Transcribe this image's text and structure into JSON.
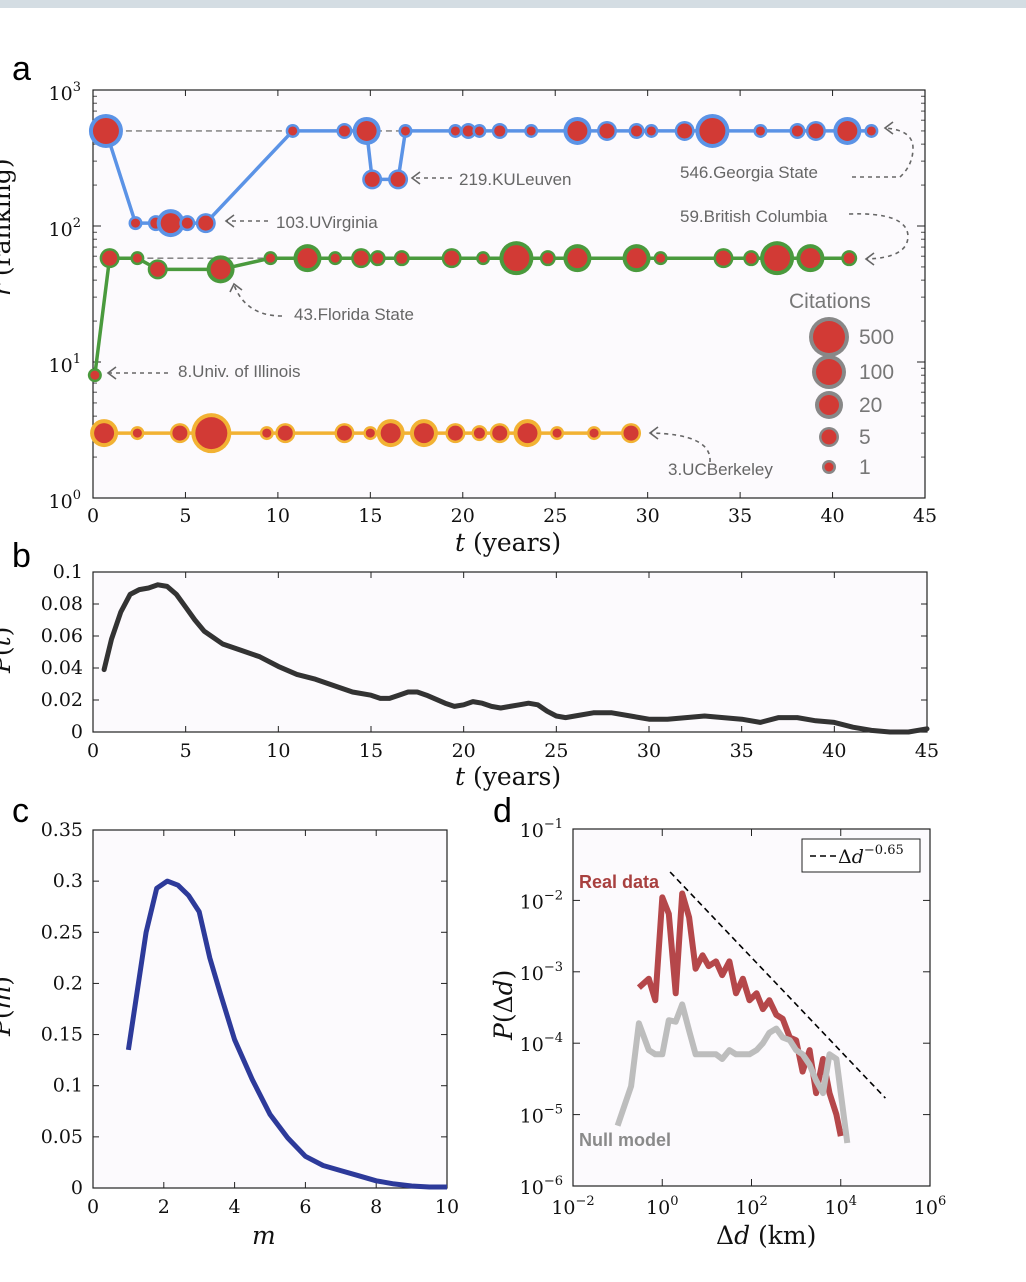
{
  "panels": {
    "a": "a",
    "b": "b",
    "c": "c",
    "d": "d"
  },
  "chart_data": [
    {
      "panel": "a",
      "type": "scatter",
      "xlabel": "t (years)",
      "ylabel": "r (ranking)",
      "xlim": [
        0,
        45
      ],
      "ylim": [
        1,
        1000
      ],
      "yscale": "log",
      "xticks": [
        "0",
        "5",
        "10",
        "15",
        "20",
        "25",
        "30",
        "35",
        "40",
        "45"
      ],
      "yticks": [
        "10^0",
        "10^1",
        "10^2",
        "10^3"
      ],
      "colors": {
        "blue": "#5b93e6",
        "green": "#4a9a3d",
        "orange": "#f2b233",
        "dot": "#d23a35",
        "legend_ring": "#888888",
        "annotation": "#666666"
      },
      "series": [
        {
          "color": "#5b93e6",
          "points": [
            [
              0.7,
              500,
              100
            ],
            [
              2.3,
              105,
              1
            ],
            [
              3.4,
              105,
              2
            ],
            [
              4.2,
              105,
              20
            ],
            [
              5.1,
              105,
              2
            ],
            [
              6.1,
              105,
              5
            ],
            [
              10.8,
              500,
              1
            ],
            [
              13.6,
              500,
              2
            ],
            [
              14.8,
              500,
              20
            ],
            [
              15.1,
              220,
              5
            ],
            [
              16.5,
              220,
              5
            ],
            [
              16.9,
              500,
              1
            ],
            [
              19.6,
              500,
              1
            ],
            [
              20.3,
              500,
              2
            ],
            [
              20.9,
              500,
              1
            ],
            [
              22.0,
              500,
              2
            ],
            [
              23.7,
              500,
              1
            ],
            [
              26.2,
              500,
              20
            ],
            [
              27.8,
              500,
              5
            ],
            [
              29.4,
              500,
              2
            ],
            [
              30.2,
              500,
              1
            ],
            [
              32.0,
              500,
              5
            ],
            [
              33.5,
              500,
              100
            ],
            [
              36.1,
              500,
              1
            ],
            [
              38.1,
              500,
              2
            ],
            [
              39.1,
              500,
              5
            ],
            [
              40.8,
              500,
              20
            ],
            [
              42.1,
              500,
              1
            ]
          ]
        },
        {
          "color": "#4a9a3d",
          "points": [
            [
              0.1,
              8,
              1
            ],
            [
              0.9,
              58,
              5
            ],
            [
              2.4,
              58,
              1
            ],
            [
              3.5,
              48,
              5
            ],
            [
              6.9,
              48,
              20
            ],
            [
              9.6,
              58,
              1
            ],
            [
              11.6,
              58,
              20
            ],
            [
              13.1,
              58,
              1
            ],
            [
              14.5,
              58,
              5
            ],
            [
              15.4,
              58,
              2
            ],
            [
              16.7,
              58,
              2
            ],
            [
              19.4,
              58,
              5
            ],
            [
              21.1,
              58,
              1
            ],
            [
              22.9,
              58,
              100
            ],
            [
              24.6,
              58,
              2
            ],
            [
              26.2,
              58,
              20
            ],
            [
              29.4,
              58,
              20
            ],
            [
              30.7,
              58,
              1
            ],
            [
              34.1,
              58,
              5
            ],
            [
              35.6,
              58,
              2
            ],
            [
              37.0,
              58,
              100
            ],
            [
              38.8,
              58,
              20
            ],
            [
              40.9,
              58,
              2
            ]
          ]
        },
        {
          "color": "#f2b233",
          "points": [
            [
              0.6,
              3,
              20
            ],
            [
              2.4,
              3,
              1
            ],
            [
              4.7,
              3,
              5
            ],
            [
              6.4,
              3,
              500
            ],
            [
              9.4,
              3,
              1
            ],
            [
              10.4,
              3,
              5
            ],
            [
              13.6,
              3,
              5
            ],
            [
              15.0,
              3,
              1
            ],
            [
              16.1,
              3,
              20
            ],
            [
              17.9,
              3,
              20
            ],
            [
              19.6,
              3,
              5
            ],
            [
              20.9,
              3,
              2
            ],
            [
              22.0,
              3,
              5
            ],
            [
              23.5,
              3,
              20
            ],
            [
              25.1,
              3,
              1
            ],
            [
              27.1,
              3,
              1
            ],
            [
              29.1,
              3,
              5
            ]
          ]
        }
      ],
      "annotations": [
        "546.Georgia State",
        "219.KULeuven",
        "103.UVirginia",
        "59.British Columbia",
        "43.Florida State",
        "8.Univ. of Illinois",
        "3.UCBerkeley"
      ],
      "legend": {
        "title": "Citations",
        "entries": [
          "500",
          "100",
          "20",
          "5",
          "1"
        ],
        "position": "right"
      }
    },
    {
      "panel": "b",
      "type": "line",
      "xlabel": "t (years)",
      "ylabel": "P(t)",
      "xlim": [
        0,
        45
      ],
      "ylim": [
        0,
        0.1
      ],
      "xticks": [
        "0",
        "5",
        "10",
        "15",
        "20",
        "25",
        "30",
        "35",
        "40",
        "45"
      ],
      "yticks": [
        "0",
        "0.02",
        "0.04",
        "0.06",
        "0.08",
        "0.1"
      ],
      "color": "#333333",
      "x": [
        0.6,
        1.0,
        1.5,
        2.0,
        2.5,
        3.0,
        3.5,
        4.0,
        4.5,
        5.0,
        5.5,
        6.0,
        7.0,
        8.0,
        9.0,
        10.0,
        11.0,
        12.0,
        13.0,
        14.0,
        15.0,
        15.5,
        16.0,
        16.5,
        17.0,
        17.5,
        18.0,
        19.0,
        19.5,
        20.0,
        20.5,
        21.0,
        21.5,
        22.0,
        22.5,
        23.0,
        23.5,
        24.0,
        24.5,
        25.0,
        25.5,
        26.0,
        27.0,
        28.0,
        29.0,
        30.0,
        31.0,
        32.0,
        33.0,
        34.0,
        35.0,
        36.0,
        37.0,
        38.0,
        39.0,
        40.0,
        41.0,
        42.0,
        43.0,
        44.0,
        45.0
      ],
      "y": [
        0.039,
        0.058,
        0.075,
        0.086,
        0.089,
        0.09,
        0.092,
        0.091,
        0.086,
        0.078,
        0.07,
        0.063,
        0.055,
        0.051,
        0.047,
        0.041,
        0.036,
        0.033,
        0.029,
        0.025,
        0.023,
        0.021,
        0.021,
        0.023,
        0.025,
        0.025,
        0.023,
        0.018,
        0.016,
        0.017,
        0.019,
        0.018,
        0.016,
        0.015,
        0.016,
        0.017,
        0.018,
        0.017,
        0.013,
        0.01,
        0.009,
        0.01,
        0.012,
        0.012,
        0.01,
        0.008,
        0.008,
        0.009,
        0.01,
        0.009,
        0.008,
        0.006,
        0.009,
        0.009,
        0.007,
        0.006,
        0.003,
        0.001,
        0.0,
        0.0,
        0.002
      ]
    },
    {
      "panel": "c",
      "type": "line",
      "xlabel": "m",
      "ylabel": "P(m)",
      "xlim": [
        0,
        10
      ],
      "ylim": [
        0,
        0.35
      ],
      "xticks": [
        "0",
        "2",
        "4",
        "6",
        "8",
        "10"
      ],
      "yticks": [
        "0",
        "0.05",
        "0.1",
        "0.15",
        "0.2",
        "0.25",
        "0.3",
        "0.35"
      ],
      "color": "#2d3a9a",
      "x": [
        1.0,
        1.5,
        1.8,
        2.1,
        2.4,
        2.7,
        3.0,
        3.3,
        3.6,
        4.0,
        4.5,
        5.0,
        5.5,
        6.0,
        6.5,
        7.0,
        7.5,
        8.0,
        8.5,
        9.0,
        9.5,
        10.0
      ],
      "y": [
        0.135,
        0.25,
        0.293,
        0.3,
        0.296,
        0.286,
        0.27,
        0.225,
        0.19,
        0.145,
        0.106,
        0.072,
        0.049,
        0.031,
        0.022,
        0.017,
        0.012,
        0.007,
        0.004,
        0.002,
        0.001,
        0.001
      ]
    },
    {
      "panel": "d",
      "type": "line",
      "xlabel": "Δd (km)",
      "ylabel": "P(Δd)",
      "xscale": "log",
      "yscale": "log",
      "xlim": [
        0.01,
        1000000
      ],
      "ylim": [
        1e-06,
        0.1
      ],
      "xticks": [
        "10^-2",
        "10^0",
        "10^2",
        "10^4",
        "10^6"
      ],
      "yticks": [
        "10^-6",
        "10^-5",
        "10^-4",
        "10^-3",
        "10^-2",
        "10^-1"
      ],
      "legend": {
        "entries": [
          "Δd^-0.65"
        ],
        "position": "top-right"
      },
      "series": [
        {
          "name": "Real data",
          "color": "#b5474a",
          "x": [
            0.3,
            0.5,
            0.7,
            1.0,
            1.4,
            2.0,
            2.8,
            4.0,
            5.6,
            8.0,
            11,
            16,
            22,
            32,
            45,
            64,
            90,
            130,
            180,
            250,
            360,
            500,
            720,
            1000,
            1400,
            2000,
            2800,
            4000,
            5600,
            8000,
            10000
          ],
          "y": [
            0.0006,
            0.0008,
            0.0004,
            0.011,
            0.0065,
            0.0005,
            0.0125,
            0.0058,
            0.0011,
            0.0017,
            0.0012,
            0.0014,
            0.0009,
            0.0014,
            0.0005,
            0.0008,
            0.0004,
            0.0005,
            0.0003,
            0.0004,
            0.00025,
            0.00022,
            0.00012,
            0.00011,
            4e-05,
            8e-05,
            2e-05,
            6e-05,
            2e-05,
            1e-05,
            5e-06
          ]
        },
        {
          "name": "Null model",
          "color": "#bdbdbd",
          "x": [
            0.1,
            0.2,
            0.3,
            0.5,
            0.7,
            1.0,
            1.4,
            2.0,
            2.8,
            4.0,
            5.6,
            8.0,
            11,
            16,
            22,
            32,
            45,
            64,
            90,
            130,
            180,
            250,
            360,
            500,
            720,
            1000,
            1400,
            2000,
            2800,
            4000,
            5600,
            8000,
            10000,
            14000
          ],
          "y": [
            7e-06,
            2.5e-05,
            0.00019,
            8e-05,
            7e-05,
            7e-05,
            0.00021,
            0.0002,
            0.00035,
            0.00015,
            7e-05,
            7e-05,
            7e-05,
            7e-05,
            6e-05,
            8e-05,
            7e-05,
            7e-05,
            7e-05,
            8e-05,
            0.0001,
            0.00014,
            0.00016,
            0.00012,
            0.00011,
            8e-05,
            7e-05,
            5e-05,
            3e-05,
            2e-05,
            7e-05,
            6e-05,
            2e-05,
            4e-06
          ]
        },
        {
          "name": "Δd^-0.65",
          "color": "#000000",
          "style": "dashed",
          "x": [
            1.5,
            100000
          ],
          "y": [
            0.025,
            1.7e-05
          ]
        }
      ]
    }
  ]
}
